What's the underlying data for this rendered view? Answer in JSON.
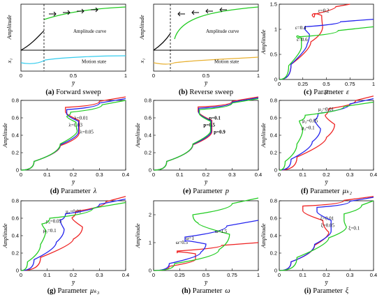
{
  "chart_data": [
    {
      "id": "a",
      "type": "line",
      "caption_letter": "(a)",
      "caption_text": "Forward sweep",
      "ylabel": "Amplitude",
      "ylabel2": "x₁",
      "xlabel": "y̅",
      "xlim": [
        0,
        1
      ],
      "xticks": [
        "0",
        "0.5",
        "1"
      ],
      "annotations": [
        "Amplitude curve",
        "Motion state"
      ],
      "colors": {
        "amplitude": "#22cc22",
        "motion": "#33ccee",
        "jump": "#000000"
      }
    },
    {
      "id": "b",
      "type": "line",
      "caption_letter": "(b)",
      "caption_text": "Reverse sweep",
      "ylabel": "Amplitude",
      "ylabel2": "x₁",
      "xlabel": "y̅",
      "xlim": [
        0,
        1
      ],
      "xticks": [
        "0",
        "0.5",
        "1"
      ],
      "annotations": [
        "Amplitude curve",
        "Motion state"
      ],
      "colors": {
        "amplitude": "#22cc22",
        "motion": "#e8b030",
        "jump": "#000000"
      }
    },
    {
      "id": "c",
      "type": "line",
      "caption_letter": "(c)",
      "caption_text": "Parameter",
      "caption_sym": "ε",
      "ylabel": "Amplitude",
      "xlabel": "y̅",
      "xlim": [
        0,
        1
      ],
      "ylim": [
        0,
        1.5
      ],
      "xticks": [
        "0",
        "0.25",
        "0.5",
        "0.75",
        "1"
      ],
      "yticks": [
        "0",
        "0.5",
        "1",
        "1.5"
      ],
      "series": [
        {
          "name": "ε=0.2",
          "color": "#ee2222",
          "points": [
            [
              0,
              0
            ],
            [
              0.25,
              0.6
            ],
            [
              0.42,
              0.9
            ],
            [
              0.5,
              1.2
            ],
            [
              0.4,
              1.35
            ],
            [
              0.3,
              1.2
            ],
            [
              0.45,
              1.4
            ],
            [
              0.75,
              1.5
            ]
          ]
        },
        {
          "name": "ε=0.4",
          "color": "#2222ee",
          "points": [
            [
              0,
              0
            ],
            [
              0.25,
              0.6
            ],
            [
              0.34,
              0.8
            ],
            [
              0.3,
              1.0
            ],
            [
              0.24,
              1.0
            ],
            [
              0.3,
              1.1
            ],
            [
              1,
              1.2
            ]
          ]
        },
        {
          "name": "ε=0.6",
          "color": "#22cc22",
          "points": [
            [
              0,
              0
            ],
            [
              0.2,
              0.55
            ],
            [
              0.27,
              0.75
            ],
            [
              0.2,
              0.9
            ],
            [
              0.17,
              0.8
            ],
            [
              0.25,
              0.9
            ],
            [
              1,
              1.05
            ]
          ]
        }
      ]
    },
    {
      "id": "d",
      "type": "line",
      "caption_letter": "(d)",
      "caption_text": "Parameter",
      "caption_sym": "λ",
      "ylabel": "Amplitude",
      "xlabel": "y̅",
      "xlim": [
        0,
        0.4
      ],
      "ylim": [
        0,
        0.8
      ],
      "xticks": [
        "0",
        "0.1",
        "0.2",
        "0.3",
        "0.4"
      ],
      "yticks": [
        "0",
        "0.2",
        "0.4",
        "0.6",
        "0.8"
      ],
      "series": [
        {
          "name": "λ=0.01",
          "color": "#ee2222",
          "points": [
            [
              0,
              0
            ],
            [
              0.1,
              0.2
            ],
            [
              0.2,
              0.36
            ],
            [
              0.245,
              0.5
            ],
            [
              0.2,
              0.64
            ],
            [
              0.14,
              0.7
            ],
            [
              0.2,
              0.74
            ],
            [
              0.4,
              0.84
            ]
          ]
        },
        {
          "name": "λ=0.03",
          "color": "#2222ee",
          "points": [
            [
              0,
              0
            ],
            [
              0.1,
              0.2
            ],
            [
              0.2,
              0.38
            ],
            [
              0.24,
              0.5
            ],
            [
              0.2,
              0.62
            ],
            [
              0.15,
              0.67
            ],
            [
              0.2,
              0.72
            ],
            [
              0.4,
              0.82
            ]
          ]
        },
        {
          "name": "λ=0.05",
          "color": "#22cc22",
          "points": [
            [
              0,
              0
            ],
            [
              0.1,
              0.2
            ],
            [
              0.2,
              0.4
            ],
            [
              0.23,
              0.5
            ],
            [
              0.19,
              0.6
            ],
            [
              0.16,
              0.63
            ],
            [
              0.22,
              0.7
            ],
            [
              0.4,
              0.8
            ]
          ]
        }
      ]
    },
    {
      "id": "e",
      "type": "line",
      "caption_letter": "(e)",
      "caption_text": "Parameter",
      "caption_sym": "p",
      "ylabel": "Amplitude",
      "xlabel": "y̅",
      "xlim": [
        0,
        0.4
      ],
      "ylim": [
        0,
        0.8
      ],
      "xticks": [
        "0",
        "0.1",
        "0.2",
        "0.3",
        "0.4"
      ],
      "yticks": [
        "0",
        "0.2",
        "0.4",
        "0.6",
        "0.8"
      ],
      "series": [
        {
          "name": "p=0.1",
          "color": "#ee2222",
          "points": [
            [
              0,
              0
            ],
            [
              0.1,
              0.2
            ],
            [
              0.2,
              0.38
            ],
            [
              0.245,
              0.5
            ],
            [
              0.2,
              0.64
            ],
            [
              0.14,
              0.71
            ],
            [
              0.2,
              0.74
            ],
            [
              0.4,
              0.84
            ]
          ]
        },
        {
          "name": "p=0.5",
          "color": "#2222ee",
          "points": [
            [
              0,
              0
            ],
            [
              0.1,
              0.2
            ],
            [
              0.2,
              0.39
            ],
            [
              0.24,
              0.5
            ],
            [
              0.2,
              0.63
            ],
            [
              0.145,
              0.69
            ],
            [
              0.2,
              0.73
            ],
            [
              0.4,
              0.83
            ]
          ]
        },
        {
          "name": "p=0.9",
          "color": "#22cc22",
          "points": [
            [
              0,
              0
            ],
            [
              0.1,
              0.2
            ],
            [
              0.2,
              0.4
            ],
            [
              0.235,
              0.5
            ],
            [
              0.2,
              0.62
            ],
            [
              0.15,
              0.67
            ],
            [
              0.2,
              0.72
            ],
            [
              0.4,
              0.82
            ]
          ]
        }
      ]
    },
    {
      "id": "f",
      "type": "line",
      "caption_letter": "(f)",
      "caption_text": "Parameter",
      "caption_sym": "μₖ₂",
      "ylabel": "Amplitude",
      "xlabel": "y̅",
      "xlim": [
        0,
        0.4
      ],
      "ylim": [
        0,
        0.8
      ],
      "xticks": [
        "0",
        "0.1",
        "0.2",
        "0.3",
        "0.4"
      ],
      "yticks": [
        "0",
        "0.2",
        "0.4",
        "0.6",
        "0.8"
      ],
      "series": [
        {
          "name": "μ₂=0.01",
          "color": "#ee2222",
          "points": [
            [
              0,
              0
            ],
            [
              0.15,
              0.3
            ],
            [
              0.25,
              0.45
            ],
            [
              0.22,
              0.6
            ],
            [
              0.17,
              0.66
            ],
            [
              0.25,
              0.75
            ],
            [
              0.4,
              0.85
            ]
          ]
        },
        {
          "name": "μ₂=0.05",
          "color": "#2222ee",
          "points": [
            [
              0,
              0
            ],
            [
              0.1,
              0.25
            ],
            [
              0.18,
              0.4
            ],
            [
              0.17,
              0.55
            ],
            [
              0.13,
              0.6
            ],
            [
              0.2,
              0.7
            ],
            [
              0.4,
              0.82
            ]
          ]
        },
        {
          "name": "μ₂=0.1",
          "color": "#22cc22",
          "points": [
            [
              0,
              0
            ],
            [
              0.05,
              0.2
            ],
            [
              0.1,
              0.4
            ],
            [
              0.1,
              0.55
            ],
            [
              0.07,
              0.58
            ],
            [
              0.15,
              0.68
            ],
            [
              0.4,
              0.78
            ]
          ]
        }
      ]
    },
    {
      "id": "g",
      "type": "line",
      "caption_letter": "(g)",
      "caption_text": "Parameter",
      "caption_sym": "μₖ₃",
      "ylabel": "Amplitude",
      "xlabel": "y̅",
      "xlim": [
        0,
        0.4
      ],
      "ylim": [
        0,
        0.8
      ],
      "xticks": [
        "0",
        "0.1",
        "0.2",
        "0.3",
        "0.4"
      ],
      "yticks": [
        "0",
        "0.2",
        "0.4",
        "0.6",
        "0.8"
      ],
      "series": [
        {
          "name": "μ₃=0.01",
          "color": "#ee2222",
          "points": [
            [
              0,
              0
            ],
            [
              0.15,
              0.3
            ],
            [
              0.25,
              0.42
            ],
            [
              0.22,
              0.58
            ],
            [
              0.17,
              0.63
            ],
            [
              0.25,
              0.73
            ],
            [
              0.4,
              0.85
            ]
          ]
        },
        {
          "name": "μ₃=0.05",
          "color": "#2222ee",
          "points": [
            [
              0,
              0
            ],
            [
              0.1,
              0.25
            ],
            [
              0.17,
              0.4
            ],
            [
              0.16,
              0.55
            ],
            [
              0.14,
              0.6
            ],
            [
              0.2,
              0.7
            ],
            [
              0.4,
              0.82
            ]
          ]
        },
        {
          "name": "μ₃=0.1",
          "color": "#22cc22",
          "points": [
            [
              0,
              0
            ],
            [
              0.05,
              0.2
            ],
            [
              0.1,
              0.4
            ],
            [
              0.09,
              0.52
            ],
            [
              0.07,
              0.55
            ],
            [
              0.15,
              0.65
            ],
            [
              0.4,
              0.78
            ]
          ]
        }
      ]
    },
    {
      "id": "h",
      "type": "line",
      "caption_letter": "(h)",
      "caption_text": "Parameter",
      "caption_sym": "ω",
      "ylabel": "Amplitude",
      "xlabel": "y̅",
      "xlim": [
        0,
        1
      ],
      "ylim": [
        0,
        2.5
      ],
      "xticks": [
        "0",
        "0.25",
        "0.5",
        "0.75",
        "1"
      ],
      "yticks": [
        "0",
        "1",
        "2"
      ],
      "series": [
        {
          "name": "ω=0.5",
          "color": "#ee2222",
          "points": [
            [
              0,
              0
            ],
            [
              0.3,
              0.3
            ],
            [
              0.5,
              0.5
            ],
            [
              0.3,
              0.7
            ],
            [
              0.15,
              0.6
            ],
            [
              0.3,
              0.8
            ],
            [
              1,
              1.0
            ]
          ]
        },
        {
          "name": "ω=1",
          "color": "#2222ee",
          "points": [
            [
              0,
              0
            ],
            [
              0.3,
              0.5
            ],
            [
              0.6,
              0.8
            ],
            [
              0.4,
              1.1
            ],
            [
              0.2,
              1.0
            ],
            [
              0.4,
              1.4
            ],
            [
              1,
              1.8
            ]
          ]
        },
        {
          "name": "ω=1.5",
          "color": "#22cc22",
          "points": [
            [
              0,
              0
            ],
            [
              0.4,
              0.5
            ],
            [
              0.85,
              1.0
            ],
            [
              0.6,
              1.6
            ],
            [
              0.25,
              1.8
            ],
            [
              0.5,
              2.2
            ],
            [
              1,
              2.6
            ]
          ]
        }
      ]
    },
    {
      "id": "i",
      "type": "line",
      "caption_letter": "(i)",
      "caption_text": "Parameter",
      "caption_sym": "ξ",
      "ylabel": "Amplitude",
      "xlabel": "y̅",
      "xlim": [
        0,
        0.4
      ],
      "ylim": [
        0,
        0.8
      ],
      "xticks": [
        "0",
        "0.1",
        "0.2",
        "0.3",
        "0.4"
      ],
      "yticks": [
        "0",
        "0.2",
        "0.4",
        "0.6",
        "0.8"
      ],
      "series": [
        {
          "name": "ξ=0.01",
          "color": "#ee2222",
          "points": [
            [
              0,
              0
            ],
            [
              0.1,
              0.2
            ],
            [
              0.2,
              0.38
            ],
            [
              0.22,
              0.5
            ],
            [
              0.15,
              0.65
            ],
            [
              0.05,
              0.72
            ],
            [
              0.15,
              0.76
            ],
            [
              0.4,
              0.85
            ]
          ]
        },
        {
          "name": "ξ=0.05",
          "color": "#2222ee",
          "points": [
            [
              0,
              0
            ],
            [
              0.1,
              0.2
            ],
            [
              0.2,
              0.4
            ],
            [
              0.24,
              0.5
            ],
            [
              0.2,
              0.65
            ],
            [
              0.12,
              0.7
            ],
            [
              0.2,
              0.75
            ],
            [
              0.4,
              0.84
            ]
          ]
        },
        {
          "name": "ξ=0.1",
          "color": "#22cc22",
          "points": [
            [
              0,
              0
            ],
            [
              0.15,
              0.3
            ],
            [
              0.27,
              0.45
            ],
            [
              0.3,
              0.55
            ],
            [
              0.25,
              0.6
            ],
            [
              0.3,
              0.7
            ],
            [
              0.4,
              0.8
            ]
          ]
        }
      ]
    }
  ]
}
